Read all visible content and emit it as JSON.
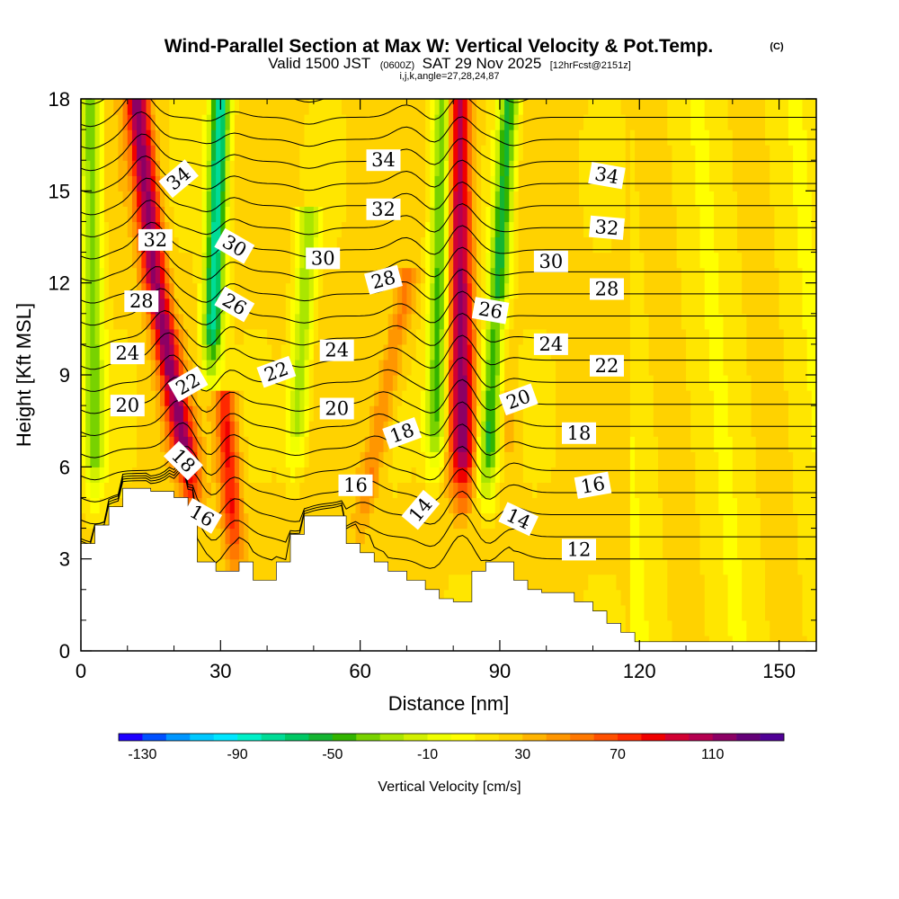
{
  "title": {
    "main": "Wind-Parallel Section at Max W: Vertical Velocity & Pot.Temp.",
    "copyright": "(C)",
    "valid_prefix": "Valid 1500 JST",
    "valid_utc": "(0600Z)",
    "valid_date": "SAT 29 Nov 2025",
    "valid_fcst": "[12hrFcst@2151z]",
    "subtitle": "i,j,k,angle=27,28,24,87"
  },
  "chart_data": {
    "type": "heatmap",
    "xlabel": "Distance [nm]",
    "ylabel": "Height [Kft MSL]",
    "xlim": [
      0,
      158
    ],
    "ylim": [
      0,
      18
    ],
    "xticks": [
      "0",
      "30",
      "60",
      "90",
      "120",
      "150"
    ],
    "yticks": [
      "0",
      "3",
      "6",
      "9",
      "12",
      "15",
      "18"
    ],
    "colorbar": {
      "label": "Vertical Velocity [cm/s]",
      "ticks": [
        "-130",
        "-90",
        "-50",
        "-10",
        "30",
        "70",
        "110"
      ],
      "colors": [
        "#1e00ff",
        "#0050ff",
        "#0096ff",
        "#00c8ff",
        "#00e6ff",
        "#00f0c8",
        "#00dc96",
        "#00c864",
        "#14b432",
        "#32b400",
        "#78d200",
        "#aae600",
        "#d2f000",
        "#f0ff00",
        "#ffff00",
        "#ffe600",
        "#ffd200",
        "#ffb400",
        "#ff9600",
        "#ff7800",
        "#ff5000",
        "#ff2800",
        "#f00000",
        "#d20032",
        "#b40050",
        "#8c0064",
        "#640078",
        "#500096"
      ]
    },
    "terrain": [
      [
        0,
        3.5
      ],
      [
        3,
        3.5
      ],
      [
        3,
        4.1
      ],
      [
        6,
        4.1
      ],
      [
        6,
        4.7
      ],
      [
        9,
        4.7
      ],
      [
        9,
        5.3
      ],
      [
        15,
        5.3
      ],
      [
        15,
        5.2
      ],
      [
        20,
        5.2
      ],
      [
        20,
        5.0
      ],
      [
        23,
        5.0
      ],
      [
        23,
        4.3
      ],
      [
        25,
        4.3
      ],
      [
        25,
        2.9
      ],
      [
        29,
        2.9
      ],
      [
        29,
        2.6
      ],
      [
        34,
        2.6
      ],
      [
        34,
        2.9
      ],
      [
        37,
        2.9
      ],
      [
        37,
        2.3
      ],
      [
        42,
        2.3
      ],
      [
        42,
        2.9
      ],
      [
        45,
        2.9
      ],
      [
        45,
        3.8
      ],
      [
        48,
        3.8
      ],
      [
        48,
        4.4
      ],
      [
        57,
        4.4
      ],
      [
        57,
        3.5
      ],
      [
        60,
        3.5
      ],
      [
        60,
        3.2
      ],
      [
        63,
        3.2
      ],
      [
        63,
        2.9
      ],
      [
        66,
        2.9
      ],
      [
        66,
        2.6
      ],
      [
        70,
        2.6
      ],
      [
        70,
        2.3
      ],
      [
        74,
        2.3
      ],
      [
        74,
        2.0
      ],
      [
        77,
        2.0
      ],
      [
        77,
        1.7
      ],
      [
        80,
        1.7
      ],
      [
        80,
        1.6
      ],
      [
        84,
        1.6
      ],
      [
        84,
        2.6
      ],
      [
        87,
        2.6
      ],
      [
        87,
        2.9
      ],
      [
        93,
        2.9
      ],
      [
        93,
        2.3
      ],
      [
        96,
        2.3
      ],
      [
        96,
        2.0
      ],
      [
        99,
        2.0
      ],
      [
        99,
        1.9
      ],
      [
        106,
        1.9
      ],
      [
        106,
        1.6
      ],
      [
        110,
        1.6
      ],
      [
        110,
        1.3
      ],
      [
        113,
        1.3
      ],
      [
        113,
        0.9
      ],
      [
        116,
        0.9
      ],
      [
        116,
        0.6
      ],
      [
        119,
        0.6
      ],
      [
        119,
        0.3
      ],
      [
        150,
        0.3
      ],
      [
        150,
        0.3
      ],
      [
        158,
        0.3
      ]
    ],
    "updrafts": [
      {
        "name": "updraft-1",
        "x": [
          24,
          16,
          12
        ],
        "y": [
          5,
          12,
          18
        ],
        "peak": 110
      },
      {
        "name": "updraft-2",
        "x": [
          33,
          31
        ],
        "y": [
          3,
          8
        ],
        "peak": 80
      },
      {
        "name": "updraft-3",
        "x": [
          60,
          70
        ],
        "y": [
          4,
          12
        ],
        "peak": 50
      },
      {
        "name": "updraft-4",
        "x": [
          82,
          81
        ],
        "y": [
          5,
          18
        ],
        "peak": 110
      },
      {
        "name": "updraft-5",
        "x": [
          92,
          90
        ],
        "y": [
          6,
          11
        ],
        "peak": 40
      }
    ],
    "downdrafts": [
      {
        "name": "downdraft-1",
        "x": [
          3,
          2
        ],
        "y": [
          5,
          18
        ],
        "peak": -40
      },
      {
        "name": "downdraft-2",
        "x": [
          28,
          30
        ],
        "y": [
          9,
          18
        ],
        "peak": -80
      },
      {
        "name": "downdraft-3",
        "x": [
          46,
          49
        ],
        "y": [
          6,
          14
        ],
        "peak": -30
      },
      {
        "name": "downdraft-4",
        "x": [
          76,
          78
        ],
        "y": [
          6,
          18
        ],
        "peak": -50
      },
      {
        "name": "downdraft-5",
        "x": [
          87,
          92
        ],
        "y": [
          5,
          18
        ],
        "peak": -60
      }
    ],
    "theta_levels": [
      12,
      13,
      14,
      15,
      16,
      17,
      18,
      19,
      20,
      21,
      22,
      23,
      24,
      25,
      26,
      27,
      28,
      29,
      30,
      31,
      32,
      33,
      34,
      35,
      36
    ],
    "theta_labels": [
      {
        "text": "34",
        "x": 21,
        "y": 15.4,
        "angle": -40
      },
      {
        "text": "32",
        "x": 16,
        "y": 13.4,
        "angle": 0
      },
      {
        "text": "28",
        "x": 13,
        "y": 11.4,
        "angle": 0
      },
      {
        "text": "24",
        "x": 10,
        "y": 9.7,
        "angle": 0
      },
      {
        "text": "20",
        "x": 10,
        "y": 8.0,
        "angle": 0
      },
      {
        "text": "30",
        "x": 33,
        "y": 13.2,
        "angle": 30
      },
      {
        "text": "26",
        "x": 33,
        "y": 11.3,
        "angle": 30
      },
      {
        "text": "22",
        "x": 23,
        "y": 8.7,
        "angle": -30
      },
      {
        "text": "18",
        "x": 22,
        "y": 6.2,
        "angle": 45
      },
      {
        "text": "16",
        "x": 26,
        "y": 4.4,
        "angle": 30
      },
      {
        "text": "34",
        "x": 65,
        "y": 16.0,
        "angle": 0
      },
      {
        "text": "32",
        "x": 65,
        "y": 14.4,
        "angle": 0
      },
      {
        "text": "30",
        "x": 52,
        "y": 12.8,
        "angle": 0
      },
      {
        "text": "28",
        "x": 65,
        "y": 12.1,
        "angle": -15
      },
      {
        "text": "24",
        "x": 55,
        "y": 9.8,
        "angle": 0
      },
      {
        "text": "22",
        "x": 42,
        "y": 9.1,
        "angle": -20
      },
      {
        "text": "20",
        "x": 55,
        "y": 7.9,
        "angle": 0
      },
      {
        "text": "18",
        "x": 69,
        "y": 7.1,
        "angle": -20
      },
      {
        "text": "16",
        "x": 59,
        "y": 5.4,
        "angle": 0
      },
      {
        "text": "14",
        "x": 73,
        "y": 4.6,
        "angle": -50
      },
      {
        "text": "26",
        "x": 88,
        "y": 11.1,
        "angle": 10
      },
      {
        "text": "30",
        "x": 101,
        "y": 12.7,
        "angle": 0
      },
      {
        "text": "24",
        "x": 101,
        "y": 10.0,
        "angle": 0
      },
      {
        "text": "20",
        "x": 94,
        "y": 8.2,
        "angle": -20
      },
      {
        "text": "14",
        "x": 94,
        "y": 4.3,
        "angle": 25
      },
      {
        "text": "34",
        "x": 113,
        "y": 15.5,
        "angle": 10
      },
      {
        "text": "32",
        "x": 113,
        "y": 13.8,
        "angle": 5
      },
      {
        "text": "28",
        "x": 113,
        "y": 11.8,
        "angle": 0
      },
      {
        "text": "22",
        "x": 113,
        "y": 9.3,
        "angle": 0
      },
      {
        "text": "18",
        "x": 107,
        "y": 7.1,
        "angle": 0
      },
      {
        "text": "16",
        "x": 110,
        "y": 5.4,
        "angle": -10
      },
      {
        "text": "12",
        "x": 107,
        "y": 3.3,
        "angle": 0
      }
    ]
  }
}
